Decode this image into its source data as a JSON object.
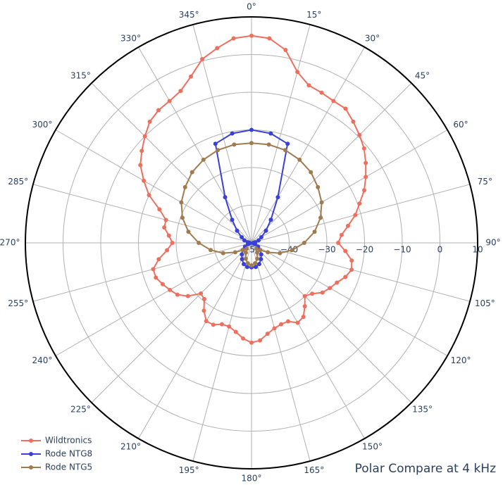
{
  "chart_data": {
    "type": "polar",
    "title": "Polar Compare at 4 kHz",
    "direction": "clockwise",
    "rlim": [
      -50,
      10
    ],
    "rticks": [
      {
        "value": -50,
        "label": "−50"
      },
      {
        "value": -40,
        "label": "−40"
      },
      {
        "value": -30,
        "label": "−30"
      },
      {
        "value": -20,
        "label": "−20"
      },
      {
        "value": -10,
        "label": "−10"
      },
      0,
      10
    ],
    "angular_ticks": [
      {
        "value": 0,
        "label": "0°"
      },
      {
        "value": 15,
        "label": "15°"
      },
      {
        "value": 30,
        "label": "30°"
      },
      {
        "value": 45,
        "label": "45°"
      },
      {
        "value": 60,
        "label": "60°"
      },
      {
        "value": 75,
        "label": "75°"
      },
      {
        "value": 90,
        "label": "90°"
      },
      {
        "value": 105,
        "label": "105°"
      },
      {
        "value": 120,
        "label": "120°"
      },
      {
        "value": 135,
        "label": "135°"
      },
      {
        "value": 150,
        "label": "150°"
      },
      {
        "value": 165,
        "label": "165°"
      },
      {
        "value": 180,
        "label": "180°"
      },
      {
        "value": 195,
        "label": "195°"
      },
      {
        "value": 210,
        "label": "210°"
      },
      {
        "value": 225,
        "label": "225°"
      },
      {
        "value": 240,
        "label": "240°"
      },
      {
        "value": 255,
        "label": "255°"
      },
      {
        "value": 270,
        "label": "270°"
      },
      {
        "value": 285,
        "label": "285°"
      },
      {
        "value": 300,
        "label": "300°"
      },
      {
        "value": 315,
        "label": "315°"
      },
      {
        "value": 330,
        "label": "330°"
      },
      {
        "value": 345,
        "label": "345°"
      }
    ],
    "grid": true,
    "legend": "bottom left",
    "series": [
      {
        "name": "Wildtronics",
        "color": "#ef6f5e",
        "theta": [
          0,
          5,
          10,
          15,
          20,
          25,
          30,
          35,
          40,
          45,
          50,
          55,
          60,
          65,
          70,
          75,
          80,
          85,
          90,
          95,
          100,
          105,
          110,
          115,
          120,
          125,
          130,
          135,
          140,
          145,
          150,
          155,
          160,
          165,
          170,
          175,
          180,
          185,
          190,
          195,
          200,
          205,
          210,
          215,
          220,
          225,
          230,
          235,
          240,
          245,
          250,
          255,
          260,
          265,
          270,
          275,
          280,
          285,
          290,
          295,
          300,
          305,
          310,
          315,
          320,
          325,
          330,
          335,
          340,
          345,
          350,
          355
        ],
        "values": [
          5,
          4.5,
          2,
          -3,
          -5.5,
          -6,
          -6.5,
          -6.5,
          -8,
          -9.5,
          -11,
          -13,
          -15,
          -17,
          -19.5,
          -21.5,
          -24,
          -26,
          -27,
          -25,
          -23,
          -22.5,
          -23.5,
          -25,
          -26,
          -27,
          -29,
          -30,
          -28,
          -26,
          -25.5,
          -27,
          -27,
          -26.5,
          -25.5,
          -24,
          -23.5,
          -24.5,
          -26,
          -27,
          -27,
          -26,
          -26,
          -28,
          -30.5,
          -31,
          -28,
          -26,
          -25,
          -24,
          -23,
          -23,
          -25,
          -27.5,
          -29,
          -28,
          -26.5,
          -26.5,
          -24,
          -20,
          -17,
          -14,
          -12,
          -10,
          -8,
          -7,
          -6.5,
          -5.5,
          -3,
          0.5,
          2.5,
          4.5
        ]
      },
      {
        "name": "Rode NTG8",
        "color": "#3a3fd8",
        "theta": [
          0,
          10,
          20,
          30,
          40,
          50,
          60,
          70,
          80,
          90,
          100,
          110,
          120,
          130,
          140,
          150,
          160,
          170,
          180,
          190,
          200,
          210,
          220,
          230,
          240,
          250,
          260,
          270,
          280,
          290,
          300,
          310,
          320,
          330,
          340,
          350
        ],
        "values": [
          -20,
          -20.5,
          -22,
          -36,
          -42,
          -45,
          -47,
          -48,
          -49,
          -49.5,
          -49.5,
          -49,
          -48,
          -47,
          -46,
          -45,
          -44,
          -43.5,
          -43.5,
          -43.5,
          -44,
          -45,
          -46,
          -47,
          -48,
          -49,
          -49.5,
          -49.5,
          -49,
          -48,
          -47,
          -45,
          -42,
          -36,
          -22,
          -20.5
        ]
      },
      {
        "name": "Rode NTG5",
        "color": "#a07b50",
        "theta": [
          0,
          10,
          20,
          30,
          40,
          50,
          60,
          70,
          80,
          90,
          100,
          110,
          120,
          130,
          140,
          150,
          160,
          170,
          180,
          190,
          200,
          210,
          220,
          230,
          240,
          250,
          260,
          270,
          280,
          290,
          300,
          310,
          320,
          330,
          340,
          350
        ],
        "values": [
          -23.5,
          -23.5,
          -23.8,
          -24.5,
          -25.5,
          -27,
          -28.5,
          -30.5,
          -33,
          -36,
          -39,
          -42,
          -45,
          -47,
          -48,
          -47,
          -45.5,
          -44.5,
          -44,
          -44.5,
          -45.5,
          -47,
          -48,
          -47,
          -45,
          -42,
          -39,
          -36,
          -33,
          -30.5,
          -28.5,
          -27,
          -25.5,
          -24.5,
          -23.8,
          -23.5
        ]
      }
    ]
  }
}
